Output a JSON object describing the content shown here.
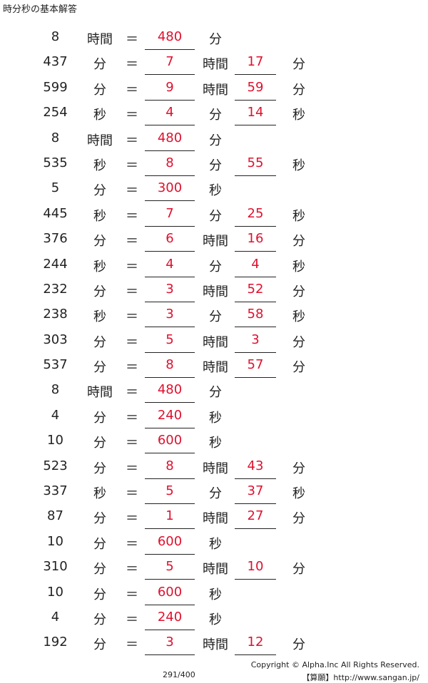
{
  "title": "時分秒の基本解答",
  "rows": [
    {
      "q": "8",
      "u1": "時間",
      "eq": "＝",
      "a1": "480",
      "u2": "分",
      "a2": "",
      "u3": ""
    },
    {
      "q": "437",
      "u1": "分",
      "eq": "＝",
      "a1": "7",
      "u2": "時間",
      "a2": "17",
      "u3": "分"
    },
    {
      "q": "599",
      "u1": "分",
      "eq": "＝",
      "a1": "9",
      "u2": "時間",
      "a2": "59",
      "u3": "分"
    },
    {
      "q": "254",
      "u1": "秒",
      "eq": "＝",
      "a1": "4",
      "u2": "分",
      "a2": "14",
      "u3": "秒"
    },
    {
      "q": "8",
      "u1": "時間",
      "eq": "＝",
      "a1": "480",
      "u2": "分",
      "a2": "",
      "u3": ""
    },
    {
      "q": "535",
      "u1": "秒",
      "eq": "＝",
      "a1": "8",
      "u2": "分",
      "a2": "55",
      "u3": "秒"
    },
    {
      "q": "5",
      "u1": "分",
      "eq": "＝",
      "a1": "300",
      "u2": "秒",
      "a2": "",
      "u3": ""
    },
    {
      "q": "445",
      "u1": "秒",
      "eq": "＝",
      "a1": "7",
      "u2": "分",
      "a2": "25",
      "u3": "秒"
    },
    {
      "q": "376",
      "u1": "分",
      "eq": "＝",
      "a1": "6",
      "u2": "時間",
      "a2": "16",
      "u3": "分"
    },
    {
      "q": "244",
      "u1": "秒",
      "eq": "＝",
      "a1": "4",
      "u2": "分",
      "a2": "4",
      "u3": "秒"
    },
    {
      "q": "232",
      "u1": "分",
      "eq": "＝",
      "a1": "3",
      "u2": "時間",
      "a2": "52",
      "u3": "分"
    },
    {
      "q": "238",
      "u1": "秒",
      "eq": "＝",
      "a1": "3",
      "u2": "分",
      "a2": "58",
      "u3": "秒"
    },
    {
      "q": "303",
      "u1": "分",
      "eq": "＝",
      "a1": "5",
      "u2": "時間",
      "a2": "3",
      "u3": "分"
    },
    {
      "q": "537",
      "u1": "分",
      "eq": "＝",
      "a1": "8",
      "u2": "時間",
      "a2": "57",
      "u3": "分"
    },
    {
      "q": "8",
      "u1": "時間",
      "eq": "＝",
      "a1": "480",
      "u2": "分",
      "a2": "",
      "u3": ""
    },
    {
      "q": "4",
      "u1": "分",
      "eq": "＝",
      "a1": "240",
      "u2": "秒",
      "a2": "",
      "u3": ""
    },
    {
      "q": "10",
      "u1": "分",
      "eq": "＝",
      "a1": "600",
      "u2": "秒",
      "a2": "",
      "u3": ""
    },
    {
      "q": "523",
      "u1": "分",
      "eq": "＝",
      "a1": "8",
      "u2": "時間",
      "a2": "43",
      "u3": "分"
    },
    {
      "q": "337",
      "u1": "秒",
      "eq": "＝",
      "a1": "5",
      "u2": "分",
      "a2": "37",
      "u3": "秒"
    },
    {
      "q": "87",
      "u1": "分",
      "eq": "＝",
      "a1": "1",
      "u2": "時間",
      "a2": "27",
      "u3": "分"
    },
    {
      "q": "10",
      "u1": "分",
      "eq": "＝",
      "a1": "600",
      "u2": "秒",
      "a2": "",
      "u3": ""
    },
    {
      "q": "310",
      "u1": "分",
      "eq": "＝",
      "a1": "5",
      "u2": "時間",
      "a2": "10",
      "u3": "分"
    },
    {
      "q": "10",
      "u1": "分",
      "eq": "＝",
      "a1": "600",
      "u2": "秒",
      "a2": "",
      "u3": ""
    },
    {
      "q": "4",
      "u1": "分",
      "eq": "＝",
      "a1": "240",
      "u2": "秒",
      "a2": "",
      "u3": ""
    },
    {
      "q": "192",
      "u1": "分",
      "eq": "＝",
      "a1": "3",
      "u2": "時間",
      "a2": "12",
      "u3": "分"
    }
  ],
  "footer": {
    "copyright": "Copyright © Alpha.Inc All Rights Reserved.",
    "site": "【算願】http://www.sangan.jp/",
    "page": "291/400"
  },
  "colors": {
    "answer": "#e0102e",
    "text": "#222222"
  }
}
